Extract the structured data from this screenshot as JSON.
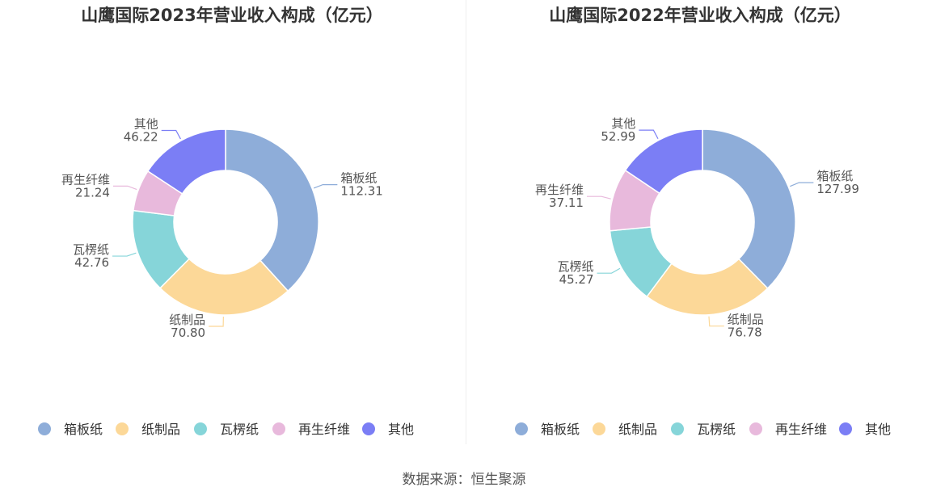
{
  "source_text": "数据来源：恒生聚源",
  "chart_data": [
    {
      "type": "pie",
      "title": "山鹰国际2023年营业收入构成（亿元）",
      "categories": [
        "箱板纸",
        "纸制品",
        "瓦楞纸",
        "再生纤维",
        "其他"
      ],
      "values": [
        112.31,
        70.8,
        42.76,
        21.24,
        46.22
      ],
      "value_labels": [
        "112.31",
        "70.80",
        "42.76",
        "21.24",
        "46.22"
      ],
      "colors": [
        "#8eadd9",
        "#fcd898",
        "#86d5d9",
        "#e8b9dc",
        "#7b7ef5"
      ],
      "legend": [
        "箱板纸",
        "纸制品",
        "瓦楞纸",
        "再生纤维",
        "其他"
      ],
      "legend_position": "bottom"
    },
    {
      "type": "pie",
      "title": "山鹰国际2022年营业收入构成（亿元）",
      "categories": [
        "箱板纸",
        "纸制品",
        "瓦楞纸",
        "再生纤维",
        "其他"
      ],
      "values": [
        127.99,
        76.78,
        45.27,
        37.11,
        52.99
      ],
      "value_labels": [
        "127.99",
        "76.78",
        "45.27",
        "37.11",
        "52.99"
      ],
      "colors": [
        "#8eadd9",
        "#fcd898",
        "#86d5d9",
        "#e8b9dc",
        "#7b7ef5"
      ],
      "legend": [
        "箱板纸",
        "纸制品",
        "瓦楞纸",
        "再生纤维",
        "其他"
      ],
      "legend_position": "bottom"
    }
  ]
}
